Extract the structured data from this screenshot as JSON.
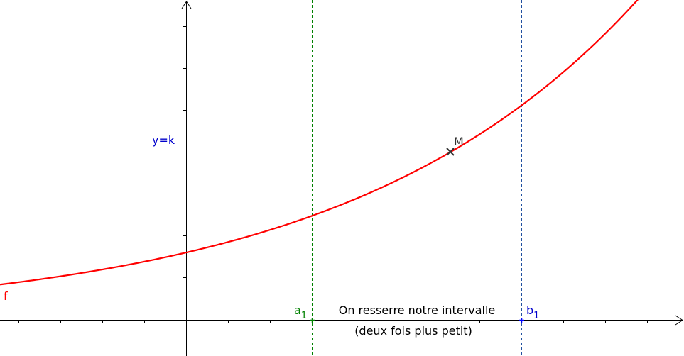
{
  "labels": {
    "curve": "f",
    "horizontal_line": "y=k",
    "point": "M",
    "a_letter": "a",
    "a_index": "1",
    "b_letter": "b",
    "b_index": "1",
    "caption_line1": "On resserre notre intervalle",
    "caption_line2": "(deux fois plus petit)"
  },
  "colors": {
    "curve": "#ff0000",
    "line_k": "#00008b",
    "label_k": "#0000cc",
    "a_line": "#008000",
    "b_line": "#0000ff",
    "b_dash": "#1f4f9f",
    "point": "#333333",
    "axes": "#000000"
  }
}
